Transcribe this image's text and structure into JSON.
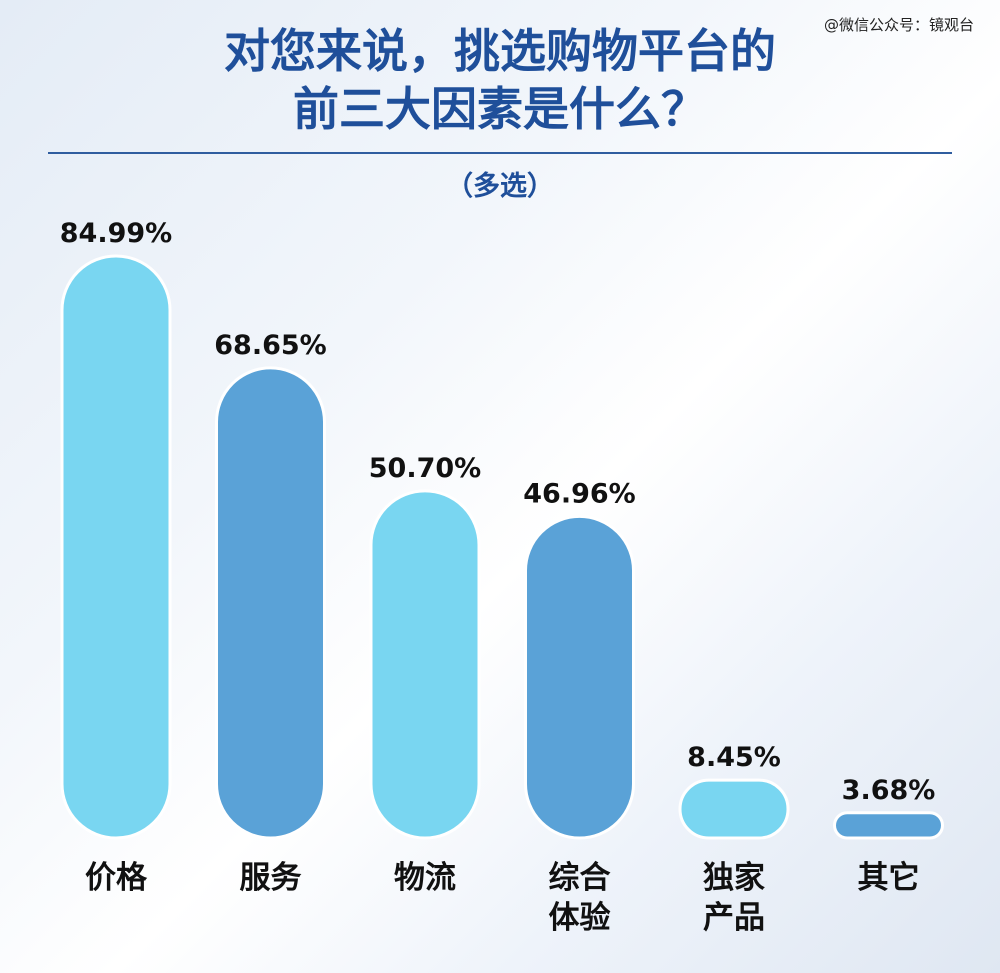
{
  "watermark": "@微信公众号：镜观台",
  "title_lines": [
    "对您来说，挑选购物平台的",
    "前三大因素是什么？"
  ],
  "subtitle": "（多选）",
  "colors": {
    "light": "#79d6f1",
    "dark": "#5aa2d7",
    "title": "#1f4f9a"
  },
  "chart_data": {
    "type": "bar",
    "title": "对您来说，挑选购物平台的前三大因素是什么？",
    "subtitle": "（多选）",
    "categories": [
      [
        "价格"
      ],
      [
        "服务"
      ],
      [
        "物流"
      ],
      [
        "综合",
        "体验"
      ],
      [
        "独家",
        "产品"
      ],
      [
        "其它"
      ]
    ],
    "values": [
      84.99,
      68.65,
      50.7,
      46.96,
      8.45,
      3.68
    ],
    "value_labels": [
      "84.99%",
      "68.65%",
      "50.70%",
      "46.96%",
      "8.45%",
      "3.68%"
    ],
    "bar_colors": [
      "light",
      "dark",
      "light",
      "dark",
      "light",
      "dark"
    ],
    "xlabel": "",
    "ylabel": "",
    "grid": false,
    "legend": "none"
  }
}
